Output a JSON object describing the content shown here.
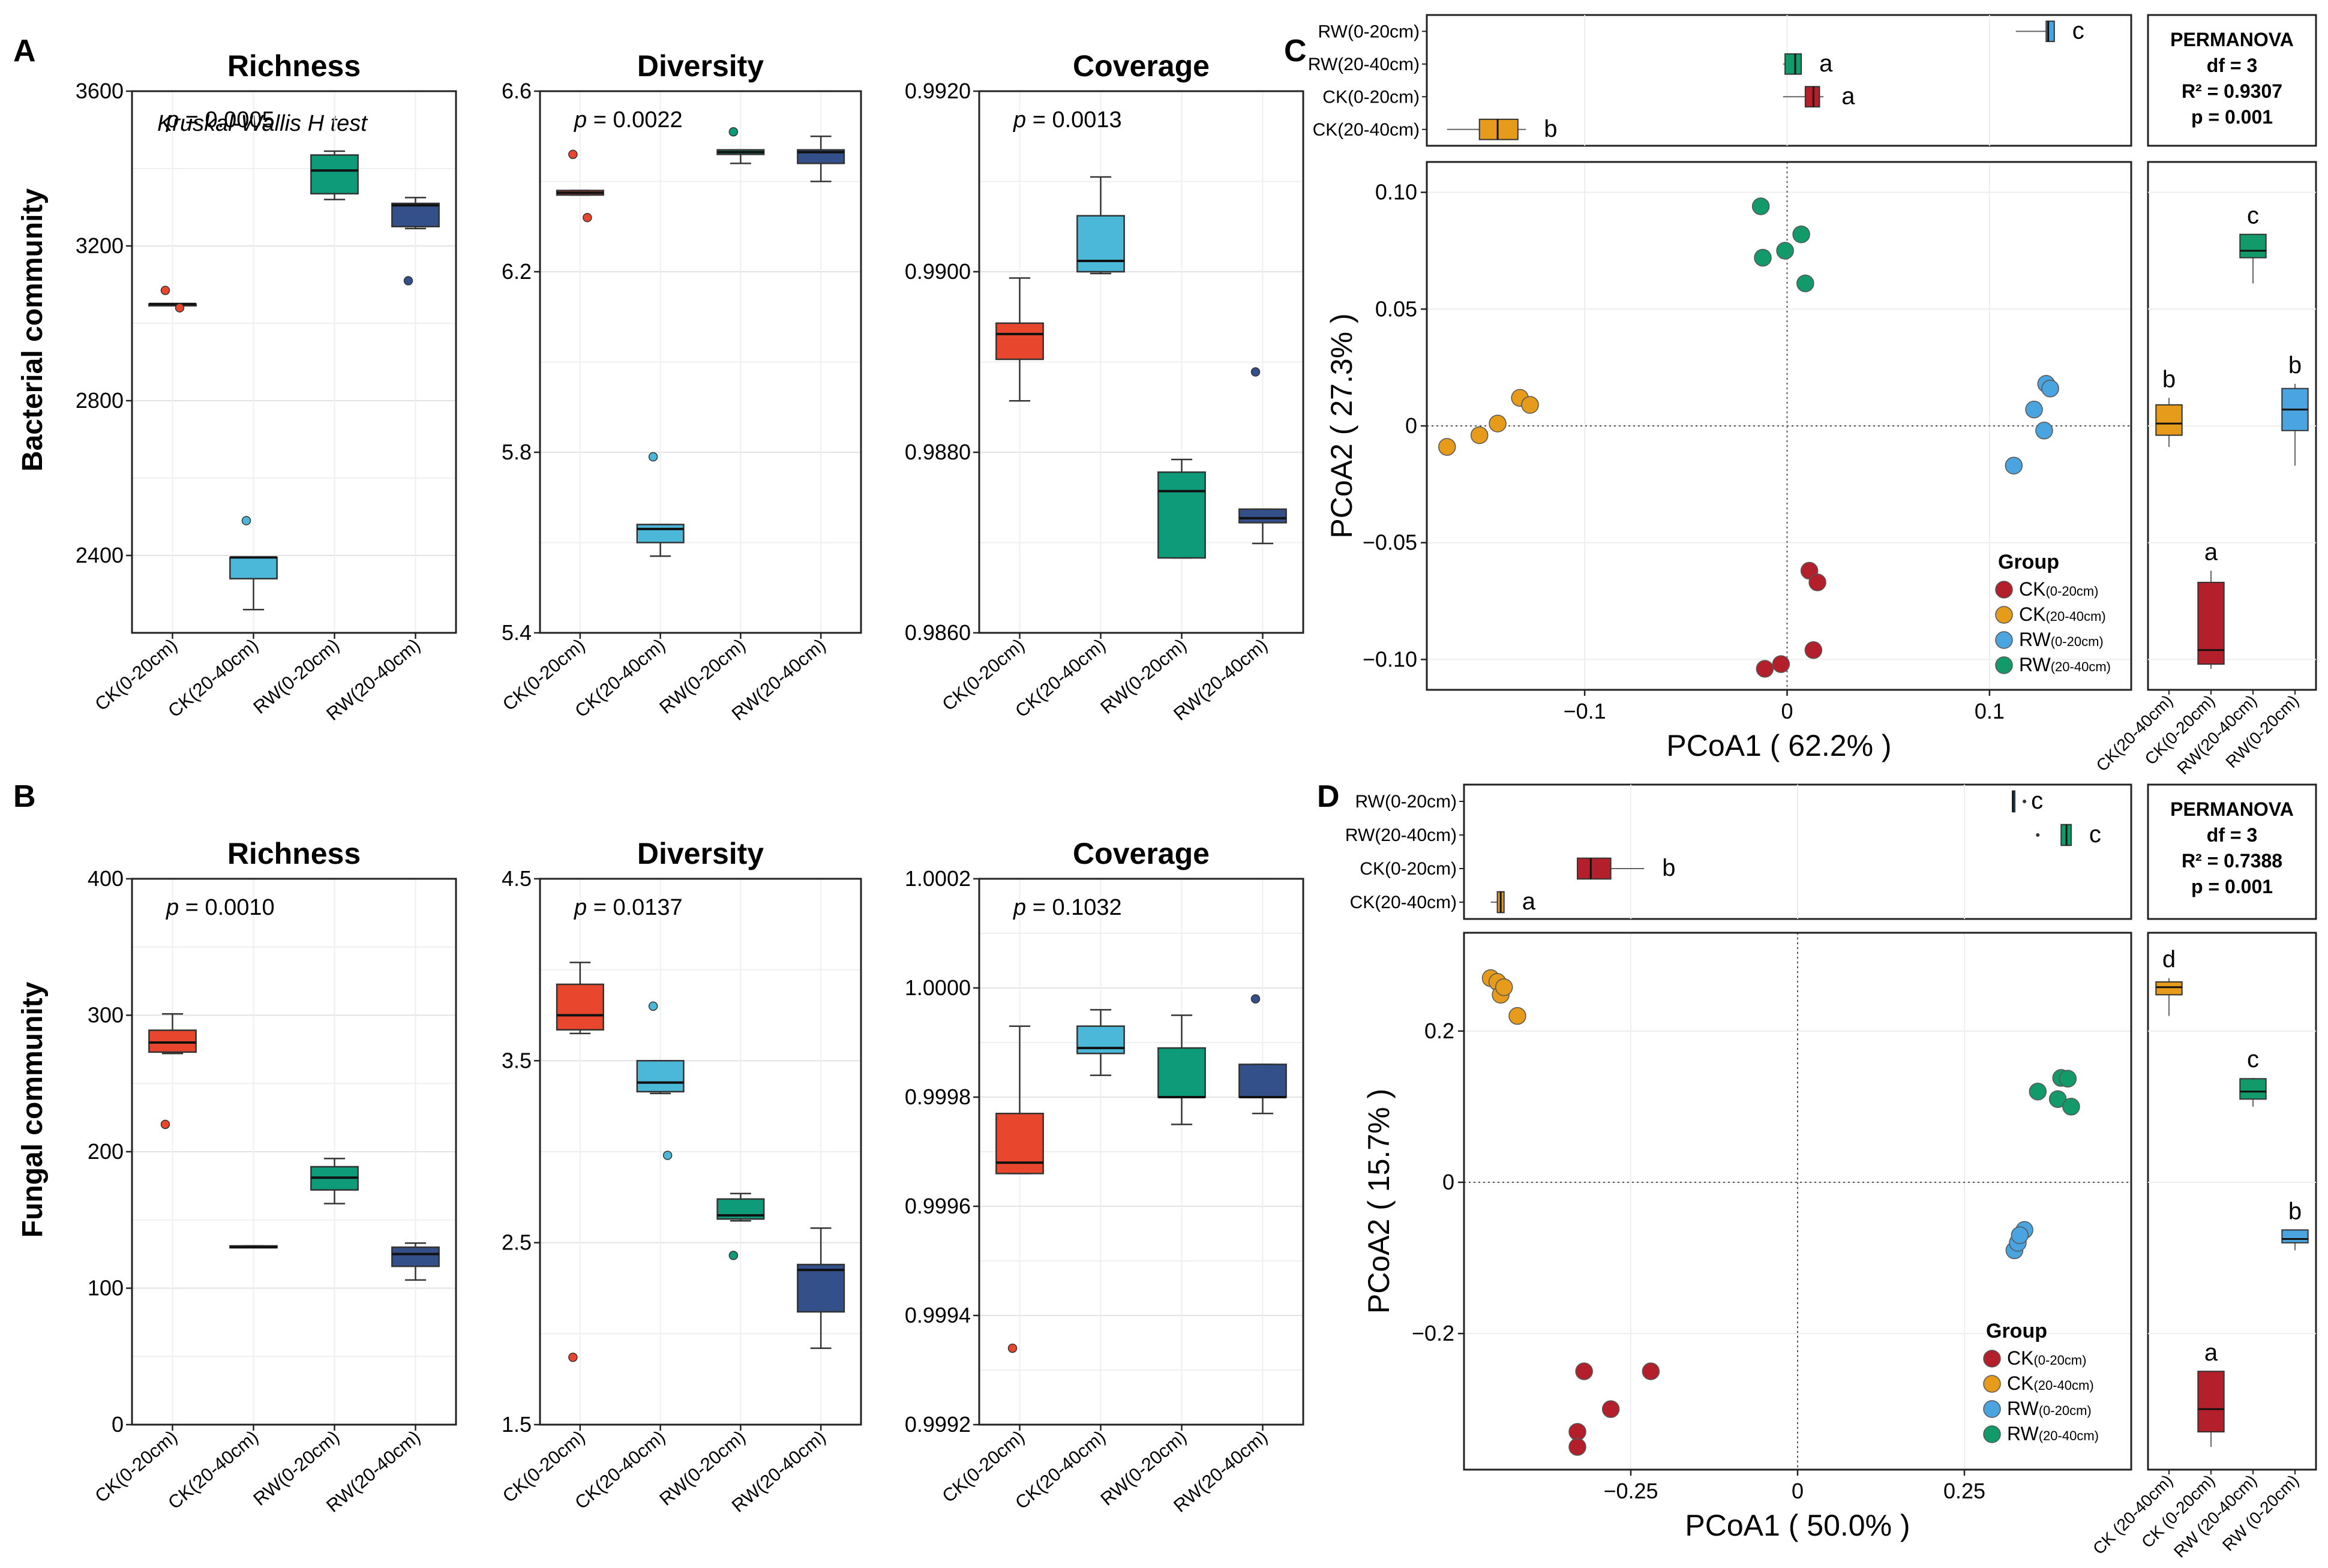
{
  "colors": {
    "CK_0_20": "#e8472d",
    "CK_20_40": "#4bb8d9",
    "RW_0_20": "#0d9b7a",
    "RW_20_40": "#34508a",
    "pc_CK_0_20": "#b3202c",
    "pc_CK_20_40": "#e69b1b",
    "pc_RW_0_20": "#4aa4df",
    "pc_RW_20_40": "#139a6b",
    "grid": "#e3e3e3",
    "frame": "#222222"
  },
  "labels": {
    "panelA": "A",
    "panelB": "B",
    "panelC": "C",
    "panelD": "D",
    "rowA": "Bacterial community",
    "rowB": "Fungal community",
    "kw_test": "Kruskal-Wallis H test",
    "pcoa_y": "PCoA2",
    "pcoa_x": "PCoA1",
    "group": "Group",
    "permanova": "PERMANOVA"
  },
  "chart_data": [
    {
      "id": "A1",
      "type": "box",
      "title": "Richness",
      "ylim": [
        2200,
        3600
      ],
      "yticks": [
        "2400",
        "2800",
        "3200",
        "3600"
      ],
      "tickvals": [
        2400,
        2800,
        3200,
        3600
      ],
      "pvalue": "p = 0.0005",
      "categories": [
        "CK(0-20cm)",
        "CK(20-40cm)",
        "RW(0-20cm)",
        "RW(20-40cm)"
      ],
      "boxes": [
        {
          "min": 3050,
          "q1": 3050,
          "med": 3050,
          "q3": 3050,
          "max": 3050,
          "outliers": [
            3085,
            3040
          ]
        },
        {
          "min": 2260,
          "q1": 2340,
          "med": 2395,
          "q3": 2395,
          "max": 2395,
          "outliers": [
            2490
          ]
        },
        {
          "min": 3320,
          "q1": 3335,
          "med": 3395,
          "q3": 3435,
          "max": 3445,
          "outliers": []
        },
        {
          "min": 3245,
          "q1": 3250,
          "med": 3305,
          "q3": 3310,
          "max": 3325,
          "outliers": [
            3110
          ]
        }
      ]
    },
    {
      "id": "A2",
      "type": "box",
      "title": "Diversity",
      "ylim": [
        5.4,
        6.6
      ],
      "yticks": [
        "5.4",
        "5.8",
        "6.2",
        "6.6"
      ],
      "tickvals": [
        5.4,
        5.8,
        6.2,
        6.6
      ],
      "pvalue": "p = 0.0022",
      "categories": [
        "CK(0-20cm)",
        "CK(20-40cm)",
        "RW(0-20cm)",
        "RW(20-40cm)"
      ],
      "boxes": [
        {
          "min": 6.37,
          "q1": 6.37,
          "med": 6.375,
          "q3": 6.38,
          "max": 6.38,
          "outliers": [
            6.46,
            6.32
          ]
        },
        {
          "min": 5.57,
          "q1": 5.6,
          "med": 5.63,
          "q3": 5.64,
          "max": 5.64,
          "outliers": [
            5.79
          ]
        },
        {
          "min": 6.44,
          "q1": 6.46,
          "med": 6.465,
          "q3": 6.47,
          "max": 6.47,
          "outliers": [
            6.51
          ]
        },
        {
          "min": 6.4,
          "q1": 6.44,
          "med": 6.465,
          "q3": 6.47,
          "max": 6.5,
          "outliers": []
        }
      ]
    },
    {
      "id": "A3",
      "type": "box",
      "title": "Coverage",
      "ylim": [
        0.986,
        0.992
      ],
      "yticks": [
        "0.9860",
        "0.9880",
        "0.9900",
        "0.9920"
      ],
      "tickvals": [
        0.986,
        0.988,
        0.99,
        0.992
      ],
      "pvalue": "p = 0.0013",
      "categories": [
        "CK(0-20cm)",
        "CK(20-40cm)",
        "RW(0-20cm)",
        "RW(20-40cm)"
      ],
      "boxes": [
        {
          "min": 0.98857,
          "q1": 0.98903,
          "med": 0.98931,
          "q3": 0.98943,
          "max": 0.98993,
          "outliers": []
        },
        {
          "min": 0.98998,
          "q1": 0.99,
          "med": 0.99012,
          "q3": 0.99062,
          "max": 0.99105,
          "outliers": []
        },
        {
          "min": 0.98683,
          "q1": 0.98683,
          "med": 0.98757,
          "q3": 0.98778,
          "max": 0.98792,
          "outliers": []
        },
        {
          "min": 0.98699,
          "q1": 0.98722,
          "med": 0.98727,
          "q3": 0.98737,
          "max": 0.98737,
          "outliers": [
            0.98889
          ]
        }
      ]
    },
    {
      "id": "B1",
      "type": "box",
      "title": "Richness",
      "ylim": [
        0,
        400
      ],
      "yticks": [
        "0",
        "100",
        "200",
        "300",
        "400"
      ],
      "tickvals": [
        0,
        100,
        200,
        300,
        400
      ],
      "pvalue": "p = 0.0010",
      "categories": [
        "CK(0-20cm)",
        "CK(20-40cm)",
        "RW(0-20cm)",
        "RW(20-40cm)"
      ],
      "boxes": [
        {
          "min": 272,
          "q1": 273,
          "med": 280,
          "q3": 289,
          "max": 301,
          "outliers": [
            220
          ]
        },
        {
          "min": 130,
          "q1": 130,
          "med": 130,
          "q3": 131,
          "max": 131,
          "outliers": []
        },
        {
          "min": 162,
          "q1": 172,
          "med": 181,
          "q3": 189,
          "max": 195,
          "outliers": []
        },
        {
          "min": 106,
          "q1": 116,
          "med": 125,
          "q3": 130,
          "max": 133,
          "outliers": []
        }
      ]
    },
    {
      "id": "B2",
      "type": "box",
      "title": "Diversity",
      "ylim": [
        1.5,
        4.5
      ],
      "yticks": [
        "1.5",
        "2.5",
        "3.5",
        "4.5"
      ],
      "tickvals": [
        1.5,
        2.5,
        3.5,
        4.5
      ],
      "pvalue": "p = 0.0137",
      "categories": [
        "CK(0-20cm)",
        "CK(20-40cm)",
        "RW(0-20cm)",
        "RW(20-40cm)"
      ],
      "boxes": [
        {
          "min": 3.65,
          "q1": 3.67,
          "med": 3.75,
          "q3": 3.92,
          "max": 4.04,
          "outliers": [
            1.87
          ]
        },
        {
          "min": 3.32,
          "q1": 3.33,
          "med": 3.38,
          "q3": 3.5,
          "max": 3.5,
          "outliers": [
            3.8,
            2.98
          ]
        },
        {
          "min": 2.62,
          "q1": 2.63,
          "med": 2.65,
          "q3": 2.74,
          "max": 2.77,
          "outliers": [
            2.43
          ]
        },
        {
          "min": 1.92,
          "q1": 2.12,
          "med": 2.35,
          "q3": 2.38,
          "max": 2.58,
          "outliers": []
        }
      ]
    },
    {
      "id": "B3",
      "type": "box",
      "title": "Coverage",
      "ylim": [
        0.9992,
        1.0002
      ],
      "yticks": [
        "0.9992",
        "0.9994",
        "0.9996",
        "0.9998",
        "1.0000",
        "1.0002"
      ],
      "tickvals": [
        0.9992,
        0.9994,
        0.9996,
        0.9998,
        1.0,
        1.0002
      ],
      "pvalue": "p = 0.1032",
      "categories": [
        "CK(0-20cm)",
        "CK(20-40cm)",
        "RW(0-20cm)",
        "RW(20-40cm)"
      ],
      "boxes": [
        {
          "min": 0.99966,
          "q1": 0.99966,
          "med": 0.99968,
          "q3": 0.99977,
          "max": 0.99993,
          "outliers": [
            0.99934
          ]
        },
        {
          "min": 0.99984,
          "q1": 0.99988,
          "med": 0.99989,
          "q3": 0.99993,
          "max": 0.99996,
          "outliers": []
        },
        {
          "min": 0.99975,
          "q1": 0.9998,
          "med": 0.9998,
          "q3": 0.99989,
          "max": 0.99995,
          "outliers": []
        },
        {
          "min": 0.99977,
          "q1": 0.9998,
          "med": 0.9998,
          "q3": 0.99986,
          "max": 0.99986,
          "outliers": [
            0.99998
          ]
        }
      ]
    },
    {
      "id": "C",
      "type": "scatter",
      "xlim": [
        -0.178,
        0.17
      ],
      "ylim": [
        -0.113,
        0.113
      ],
      "xticks": [
        "-0.1",
        "0",
        "0.1"
      ],
      "xtickvals": [
        -0.1,
        0,
        0.1
      ],
      "yticks": [
        "-0.10",
        "-0.05",
        "0",
        "0.05",
        "0.10"
      ],
      "ytickvals": [
        -0.1,
        -0.05,
        0,
        0.05,
        0.1
      ],
      "xlabel": "PCoA1 ( 62.2% )",
      "ylabel": "PCoA2 ( 27.3% )",
      "permanova": {
        "df": "df = 3",
        "r2": "R² = 0.9307",
        "p": "p = 0.001"
      },
      "groups": [
        {
          "name": "CK",
          "sub": "(0-20cm)",
          "points": [
            [
              0.011,
              -0.062
            ],
            [
              0.015,
              -0.067
            ],
            [
              -0.011,
              -0.104
            ],
            [
              -0.003,
              -0.102
            ],
            [
              0.013,
              -0.096
            ]
          ]
        },
        {
          "name": "CK",
          "sub": "(20-40cm)",
          "points": [
            [
              -0.168,
              -0.009
            ],
            [
              -0.152,
              -0.004
            ],
            [
              -0.143,
              0.001
            ],
            [
              -0.132,
              0.012
            ],
            [
              -0.127,
              0.009
            ]
          ]
        },
        {
          "name": "RW",
          "sub": "(0-20cm)",
          "points": [
            [
              0.112,
              -0.017
            ],
            [
              0.122,
              0.007
            ],
            [
              0.127,
              -0.002
            ],
            [
              0.128,
              0.018
            ],
            [
              0.13,
              0.016
            ]
          ]
        },
        {
          "name": "RW",
          "sub": "(20-40cm)",
          "points": [
            [
              -0.013,
              0.094
            ],
            [
              -0.012,
              0.072
            ],
            [
              -0.001,
              0.075
            ],
            [
              0.007,
              0.082
            ],
            [
              0.009,
              0.061
            ]
          ]
        }
      ],
      "top_boxes": [
        {
          "cat": "RW(0-20cm)",
          "min": 0.113,
          "q1": 0.128,
          "med": 0.129,
          "q3": 0.132,
          "max": 0.132,
          "letter": "c"
        },
        {
          "cat": "RW(20-40cm)",
          "min": -0.002,
          "q1": -0.001,
          "med": 0.004,
          "q3": 0.007,
          "max": 0.007,
          "letter": "a"
        },
        {
          "cat": "CK(0-20cm)",
          "min": -0.002,
          "q1": 0.009,
          "med": 0.013,
          "q3": 0.016,
          "max": 0.018,
          "letter": "a"
        },
        {
          "cat": "CK(20-40cm)",
          "min": -0.168,
          "q1": -0.152,
          "med": -0.143,
          "q3": -0.133,
          "max": -0.129,
          "letter": "b"
        }
      ],
      "side_boxes": [
        {
          "cat": "CK(20-40cm)",
          "min": -0.009,
          "q1": -0.004,
          "med": 0.001,
          "q3": 0.009,
          "max": 0.012,
          "letter": "b"
        },
        {
          "cat": "CK(0-20cm)",
          "min": -0.104,
          "q1": -0.102,
          "med": -0.096,
          "q3": -0.067,
          "max": -0.062,
          "letter": "a"
        },
        {
          "cat": "RW(20-40cm)",
          "min": 0.061,
          "q1": 0.072,
          "med": 0.075,
          "q3": 0.082,
          "max": 0.082,
          "letter": "c"
        },
        {
          "cat": "RW(0-20cm)",
          "min": -0.017,
          "q1": -0.002,
          "med": 0.007,
          "q3": 0.016,
          "max": 0.018,
          "letter": "b"
        }
      ]
    },
    {
      "id": "D",
      "type": "scatter",
      "xlim": [
        -0.5,
        0.5
      ],
      "ylim": [
        -0.38,
        0.33
      ],
      "xticks": [
        "-0.25",
        "0",
        "0.25"
      ],
      "xtickvals": [
        -0.25,
        0,
        0.25
      ],
      "yticks": [
        "-0.2",
        "0",
        "0.2"
      ],
      "ytickvals": [
        -0.2,
        0,
        0.2
      ],
      "xlabel": "PCoA1 ( 50.0% )",
      "ylabel": "PCoA2 ( 15.7% )",
      "permanova": {
        "df": "df = 3",
        "r2": "R² = 0.7388",
        "p": "p = 0.001"
      },
      "groups": [
        {
          "name": "CK",
          "sub": "(0-20cm)",
          "points": [
            [
              -0.33,
              -0.33
            ],
            [
              -0.33,
              -0.35
            ],
            [
              -0.32,
              -0.25
            ],
            [
              -0.28,
              -0.3
            ],
            [
              -0.22,
              -0.25
            ]
          ]
        },
        {
          "name": "CK",
          "sub": "(20-40cm)",
          "points": [
            [
              -0.46,
              0.27
            ],
            [
              -0.45,
              0.265
            ],
            [
              -0.445,
              0.248
            ],
            [
              -0.44,
              0.258
            ],
            [
              -0.42,
              0.22
            ]
          ]
        },
        {
          "name": "RW",
          "sub": "(0-20cm)",
          "points": [
            [
              0.325,
              -0.09
            ],
            [
              0.33,
              -0.08
            ],
            [
              0.34,
              -0.063
            ],
            [
              0.333,
              -0.07
            ]
          ]
        },
        {
          "name": "RW",
          "sub": "(20-40cm)",
          "points": [
            [
              0.36,
              0.12
            ],
            [
              0.39,
              0.11
            ],
            [
              0.395,
              0.138
            ],
            [
              0.405,
              0.137
            ],
            [
              0.41,
              0.1
            ]
          ]
        }
      ],
      "top_boxes": [
        {
          "cat": "RW(0-20cm)",
          "min": 0.322,
          "q1": 0.322,
          "med": 0.323,
          "q3": 0.323,
          "max": 0.323,
          "letter": "c",
          "outliers": [
            0.34
          ]
        },
        {
          "cat": "RW(20-40cm)",
          "min": 0.395,
          "q1": 0.395,
          "med": 0.403,
          "q3": 0.41,
          "max": 0.41,
          "letter": "c",
          "outliers": [
            0.36
          ]
        },
        {
          "cat": "CK(0-20cm)",
          "min": -0.33,
          "q1": -0.33,
          "med": -0.31,
          "q3": -0.28,
          "max": -0.23,
          "letter": "b"
        },
        {
          "cat": "CK(20-40cm)",
          "min": -0.46,
          "q1": -0.45,
          "med": -0.445,
          "q3": -0.44,
          "max": -0.44,
          "letter": "a"
        }
      ],
      "side_boxes": [
        {
          "cat": "CK (20-40cm)",
          "min": 0.22,
          "q1": 0.248,
          "med": 0.258,
          "q3": 0.265,
          "max": 0.27,
          "letter": "d"
        },
        {
          "cat": "CK (0-20cm)",
          "min": -0.35,
          "q1": -0.33,
          "med": -0.3,
          "q3": -0.25,
          "max": -0.25,
          "letter": "a"
        },
        {
          "cat": "RW (20-40cm)",
          "min": 0.1,
          "q1": 0.11,
          "med": 0.12,
          "q3": 0.137,
          "max": 0.138,
          "letter": "c"
        },
        {
          "cat": "RW (0-20cm)",
          "min": -0.09,
          "q1": -0.08,
          "med": -0.075,
          "q3": -0.063,
          "max": -0.063,
          "letter": "b"
        }
      ]
    }
  ]
}
